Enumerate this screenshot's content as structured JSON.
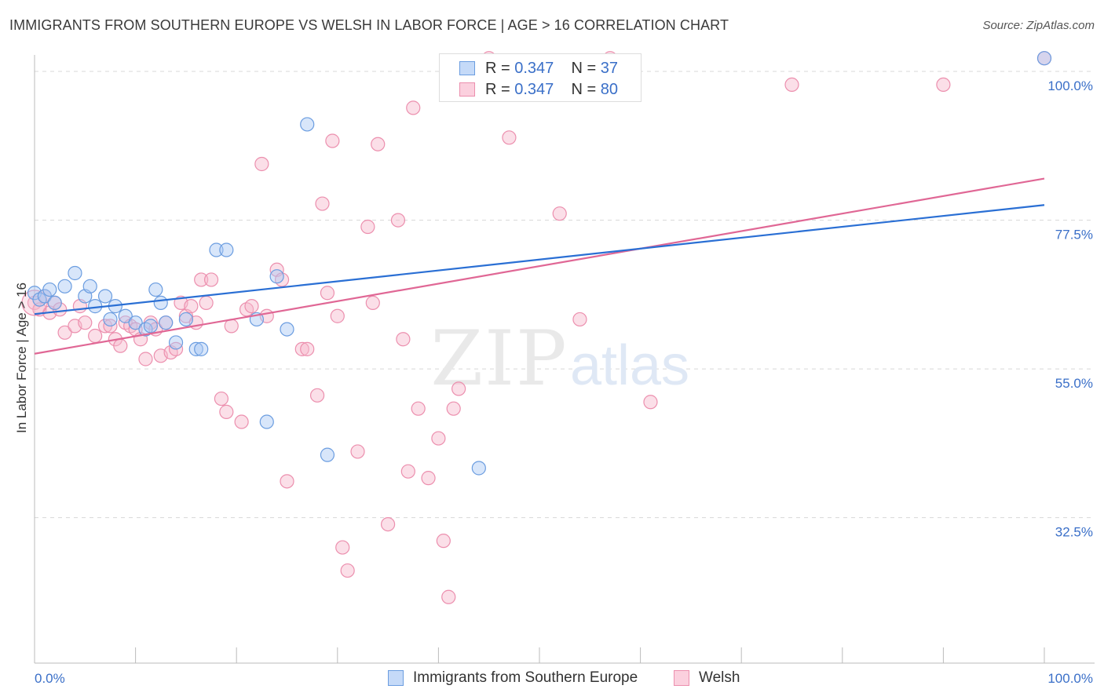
{
  "title": "IMMIGRANTS FROM SOUTHERN EUROPE VS WELSH IN LABOR FORCE | AGE > 16 CORRELATION CHART",
  "source": "Source: ZipAtlas.com",
  "legend_top": {
    "rows": [
      {
        "r_label": "R = ",
        "r_value": "0.347",
        "n_label": "N = ",
        "n_value": "37"
      },
      {
        "r_label": "R = ",
        "r_value": "0.347",
        "n_label": "N = ",
        "n_value": "80"
      }
    ]
  },
  "legend_bottom": [
    "Immigrants from Southern Europe",
    "Welsh"
  ],
  "watermark": {
    "zip": "ZIP",
    "atlas": "atlas"
  },
  "colors": {
    "blue_fill": "#a9c8f5",
    "blue_stroke": "#6b9de0",
    "blue_line": "#2a6fd4",
    "pink_fill": "#f7b9cd",
    "pink_stroke": "#ec8fae",
    "pink_line": "#e06795",
    "axis_label": "#3a6fc8",
    "grid": "#d8d8d8"
  },
  "chart_data": {
    "type": "scatter",
    "title": "IMMIGRANTS FROM SOUTHERN EUROPE VS WELSH IN LABOR FORCE | AGE > 16 CORRELATION CHART",
    "xlabel": "",
    "ylabel": "In Labor Force | Age > 16",
    "xlim": [
      0,
      100
    ],
    "ylim": [
      10.5,
      102.5
    ],
    "x_tick_labels": [
      "0.0%",
      "100.0%"
    ],
    "y_ticks": [
      32.5,
      55.0,
      77.5,
      100.0
    ],
    "y_tick_labels": [
      "32.5%",
      "55.0%",
      "77.5%",
      "100.0%"
    ],
    "grid": true,
    "legend_position": "top-center",
    "series": [
      {
        "name": "Immigrants from Southern Europe",
        "color": "#6b9de0",
        "r": 0.347,
        "n": 37,
        "trend": {
          "x": [
            0,
            100
          ],
          "y": [
            63.3,
            79.8
          ]
        },
        "points": [
          [
            0,
            66.5
          ],
          [
            0.5,
            65.5
          ],
          [
            1,
            66
          ],
          [
            1.5,
            67
          ],
          [
            2,
            65
          ],
          [
            3,
            67.5
          ],
          [
            4,
            69.5
          ],
          [
            5,
            66
          ],
          [
            5.5,
            67.5
          ],
          [
            6,
            64.5
          ],
          [
            7,
            66
          ],
          [
            7.5,
            62.5
          ],
          [
            8,
            64.5
          ],
          [
            9,
            63
          ],
          [
            10,
            62
          ],
          [
            11,
            61
          ],
          [
            11.5,
            61.5
          ],
          [
            12,
            67
          ],
          [
            12.5,
            65
          ],
          [
            13,
            62
          ],
          [
            14,
            59
          ],
          [
            15,
            62.5
          ],
          [
            16,
            58
          ],
          [
            16.5,
            58
          ],
          [
            18,
            73
          ],
          [
            19,
            73
          ],
          [
            22,
            62.5
          ],
          [
            23,
            47
          ],
          [
            24,
            69
          ],
          [
            25,
            61
          ],
          [
            27,
            92
          ],
          [
            29,
            42
          ],
          [
            44,
            40
          ],
          [
            100,
            102
          ]
        ]
      },
      {
        "name": "Welsh",
        "color": "#ec8fae",
        "r": 0.347,
        "n": 80,
        "trend": {
          "x": [
            0,
            100
          ],
          "y": [
            57.3,
            83.8
          ]
        },
        "points": [
          [
            0,
            65
          ],
          [
            0.5,
            64
          ],
          [
            1,
            66
          ],
          [
            1.5,
            63.5
          ],
          [
            2,
            65
          ],
          [
            2.5,
            64
          ],
          [
            3,
            60.5
          ],
          [
            4,
            61.5
          ],
          [
            4.5,
            64.5
          ],
          [
            5,
            62
          ],
          [
            6,
            60
          ],
          [
            7,
            61.5
          ],
          [
            7.5,
            61.5
          ],
          [
            8,
            59.5
          ],
          [
            8.5,
            58.5
          ],
          [
            9,
            62
          ],
          [
            9.5,
            61.5
          ],
          [
            10,
            61
          ],
          [
            10.5,
            59.5
          ],
          [
            11,
            56.5
          ],
          [
            11.5,
            62
          ],
          [
            12,
            61
          ],
          [
            12.5,
            57
          ],
          [
            13,
            62
          ],
          [
            13.5,
            57.5
          ],
          [
            14,
            58
          ],
          [
            14.5,
            65
          ],
          [
            15,
            63
          ],
          [
            15.5,
            64.5
          ],
          [
            16,
            62
          ],
          [
            16.5,
            68.5
          ],
          [
            17,
            65
          ],
          [
            17.5,
            68.5
          ],
          [
            18.5,
            50.5
          ],
          [
            19,
            48.5
          ],
          [
            19.5,
            61.5
          ],
          [
            20.5,
            47
          ],
          [
            21,
            64
          ],
          [
            21.5,
            64.5
          ],
          [
            22.5,
            86
          ],
          [
            23,
            63
          ],
          [
            24,
            70
          ],
          [
            24.5,
            68.5
          ],
          [
            25,
            38
          ],
          [
            26.5,
            58
          ],
          [
            27,
            58
          ],
          [
            28,
            51
          ],
          [
            28.5,
            80
          ],
          [
            29,
            66.5
          ],
          [
            29.5,
            89.5
          ],
          [
            30,
            63
          ],
          [
            30.5,
            28
          ],
          [
            31,
            24.5
          ],
          [
            32,
            42.5
          ],
          [
            33,
            76.5
          ],
          [
            33.5,
            65
          ],
          [
            34,
            89
          ],
          [
            35,
            31.5
          ],
          [
            36,
            77.5
          ],
          [
            36.5,
            59.5
          ],
          [
            37,
            39.5
          ],
          [
            37.5,
            94.5
          ],
          [
            38,
            49
          ],
          [
            39,
            38.5
          ],
          [
            40,
            44.5
          ],
          [
            40.5,
            29
          ],
          [
            41,
            20.5
          ],
          [
            41.5,
            49
          ],
          [
            42,
            52
          ],
          [
            45,
            102
          ],
          [
            47,
            90
          ],
          [
            52,
            78.5
          ],
          [
            54,
            62.5
          ],
          [
            57,
            102
          ],
          [
            61,
            50
          ],
          [
            75,
            98
          ],
          [
            90,
            98
          ],
          [
            100,
            102
          ]
        ]
      }
    ]
  }
}
